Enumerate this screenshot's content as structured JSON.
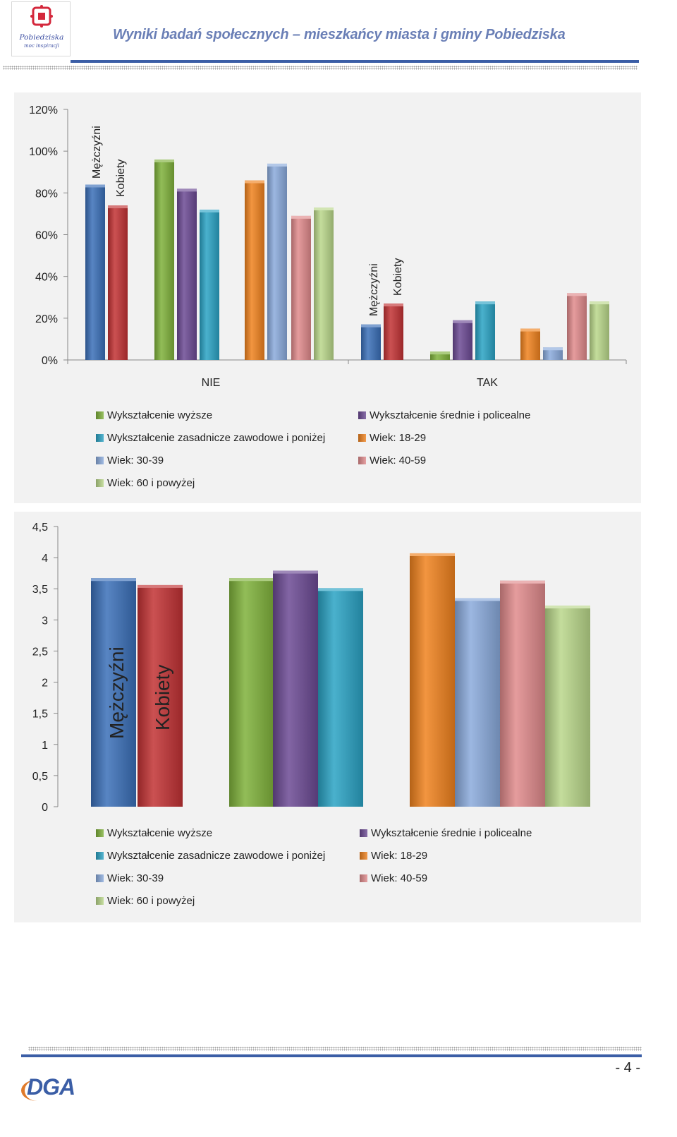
{
  "header": {
    "logo_text": "Pobiedziska",
    "logo_subtitle": "moc inspiracji",
    "title": "Wyniki badań społecznych – mieszkańcy miasta i gminy Pobiedziska"
  },
  "footer": {
    "page_number": "- 4 -",
    "logo_text": "DGA"
  },
  "colors": {
    "Mężczyźni": "#3a6fb8",
    "Kobiety": "#c23234",
    "Wykształcenie wyższe": "#7fb13b",
    "Wykształcenie średnie i policealne": "#6c4a94",
    "Wykształcenie zasadnicze zawodowe i poniżej": "#2aa3c4",
    "Wiek: 18-29": "#f0821e",
    "Wiek: 30-39": "#8aaadc",
    "Wiek: 40-59": "#e08a8c",
    "Wiek: 60 i powyżej": "#b9d78a"
  },
  "legend_items": [
    "Wykształcenie wyższe",
    "Wykształcenie średnie i policealne",
    "Wykształcenie zasadnicze zawodowe i poniżej",
    "Wiek: 18-29",
    "Wiek: 30-39",
    "Wiek: 40-59",
    "Wiek: 60 i powyżej"
  ],
  "chart_data": [
    {
      "type": "bar",
      "categories": [
        "NIE",
        "TAK"
      ],
      "yticks": [
        "0%",
        "20%",
        "40%",
        "60%",
        "80%",
        "100%",
        "120%"
      ],
      "ylim": [
        0,
        120
      ],
      "grid": false,
      "legend_position": "bottom",
      "series": [
        {
          "name": "Mężczyźni",
          "values": [
            84,
            17
          ]
        },
        {
          "name": "Kobiety",
          "values": [
            74,
            27
          ]
        },
        {
          "name": "Wykształcenie wyższe",
          "values": [
            96,
            4
          ]
        },
        {
          "name": "Wykształcenie średnie i policealne",
          "values": [
            82,
            19
          ]
        },
        {
          "name": "Wykształcenie zasadnicze zawodowe i poniżej",
          "values": [
            72,
            28
          ]
        },
        {
          "name": "Wiek: 18-29",
          "values": [
            86,
            15
          ]
        },
        {
          "name": "Wiek: 30-39",
          "values": [
            94,
            6
          ]
        },
        {
          "name": "Wiek: 40-59",
          "values": [
            69,
            32
          ]
        },
        {
          "name": "Wiek: 60 i powyżej",
          "values": [
            73,
            28
          ]
        }
      ]
    },
    {
      "type": "bar",
      "categories": [
        ""
      ],
      "yticks": [
        "0",
        "0,5",
        "1",
        "1,5",
        "2",
        "2,5",
        "3",
        "3,5",
        "4",
        "4,5"
      ],
      "ylim": [
        0,
        4.5
      ],
      "grid": false,
      "legend_position": "bottom",
      "series": [
        {
          "name": "Mężczyźni",
          "values": [
            3.67
          ]
        },
        {
          "name": "Kobiety",
          "values": [
            3.56
          ]
        },
        {
          "name": "Wykształcenie wyższe",
          "values": [
            3.67
          ]
        },
        {
          "name": "Wykształcenie średnie i policealne",
          "values": [
            3.79
          ]
        },
        {
          "name": "Wykształcenie zasadnicze zawodowe i poniżej",
          "values": [
            3.51
          ]
        },
        {
          "name": "Wiek: 18-29",
          "values": [
            4.07
          ]
        },
        {
          "name": "Wiek: 30-39",
          "values": [
            3.35
          ]
        },
        {
          "name": "Wiek: 40-59",
          "values": [
            3.63
          ]
        },
        {
          "name": "Wiek: 60 i powyżej",
          "values": [
            3.23
          ]
        }
      ]
    }
  ]
}
